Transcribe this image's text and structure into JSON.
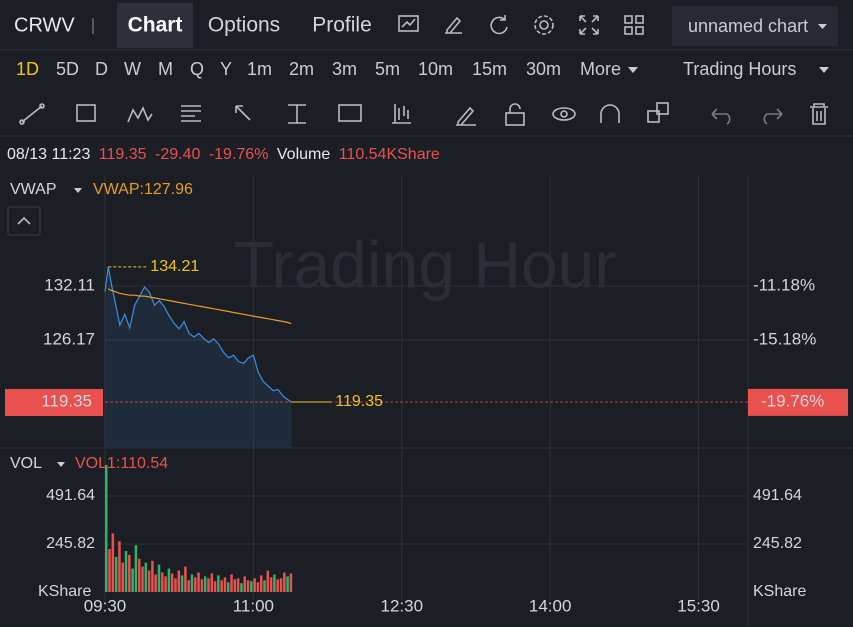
{
  "header": {
    "symbol": "CRWV",
    "tabs": [
      "Chart",
      "Options",
      "Profile"
    ],
    "chart_name": "unnamed chart"
  },
  "periods": [
    "1D",
    "5D",
    "D",
    "W",
    "M",
    "Q",
    "Y",
    "1m",
    "2m",
    "3m",
    "5m",
    "10m",
    "15m",
    "30m",
    "More"
  ],
  "session": "Trading Hours",
  "info": {
    "datetime": "08/13 11:23",
    "price": "119.35",
    "change": "-29.40",
    "change_pct": "-19.76%",
    "volume_label": "Volume",
    "volume": "110.54KShare"
  },
  "chart_data": [
    {
      "type": "line",
      "indicator": "VWAP",
      "indicator_label": "VWAP:127.96",
      "watermark": "Trading Hour",
      "x": [
        "09:30",
        "09:32",
        "09:34",
        "09:36",
        "09:39",
        "09:42",
        "09:45",
        "09:48",
        "09:51",
        "09:54",
        "09:57",
        "10:00",
        "10:03",
        "10:06",
        "10:09",
        "10:12",
        "10:15",
        "10:18",
        "10:21",
        "10:24",
        "10:27",
        "10:30",
        "10:33",
        "10:36",
        "10:39",
        "10:42",
        "10:45",
        "10:48",
        "10:51",
        "10:54",
        "10:57",
        "11:00",
        "11:03",
        "11:06",
        "11:09",
        "11:12",
        "11:15",
        "11:18",
        "11:21",
        "11:23"
      ],
      "series": [
        {
          "color": "#3d8fe0",
          "values": [
            131.5,
            134.21,
            132.2,
            130.5,
            127.8,
            129,
            127.5,
            130,
            131,
            132,
            131.4,
            130,
            130.5,
            129.8,
            128.8,
            128,
            127.4,
            128.2,
            126.9,
            126.5,
            126.9,
            126.3,
            125.9,
            126.3,
            125.7,
            124.8,
            124.2,
            124.5,
            123.8,
            123.6,
            124.2,
            124.5,
            122.6,
            121.6,
            121.1,
            120.6,
            120.7,
            120.0,
            119.6,
            119.35
          ]
        },
        {
          "name": "VWAP",
          "color": "#e69b2a",
          "values": [
            null,
            131.8,
            131.6,
            131.5,
            131.3,
            131.2,
            131.1,
            131.1,
            131.0,
            131.0,
            130.9,
            130.8,
            130.7,
            130.6,
            130.5,
            130.4,
            130.3,
            130.2,
            130.1,
            130.0,
            129.9,
            129.8,
            129.7,
            129.6,
            129.5,
            129.4,
            129.3,
            129.2,
            129.1,
            129.0,
            128.9,
            128.8,
            128.7,
            128.6,
            128.5,
            128.4,
            128.3,
            128.2,
            128.1,
            127.96
          ]
        }
      ],
      "high": 134.21,
      "last": 119.35,
      "last_pct": {
        "value": -19.76,
        "label": "-19.76%"
      },
      "ylim": [
        114.29,
        144.32
      ],
      "yticks": [
        132.11,
        126.17
      ],
      "y2lim": [
        -23.17,
        -2.98
      ],
      "y2ticks": [
        {
          "value": -11.18,
          "label": "-11.18%"
        },
        {
          "value": -15.18,
          "label": "-15.18%"
        }
      ],
      "xlim": [
        "09:30",
        "16:00"
      ],
      "xticks": [
        "09:30",
        "11:00",
        "12:30",
        "14:00",
        "15:30"
      ],
      "grid": true
    },
    {
      "type": "bar",
      "indicator": "VOL",
      "indicator_label": "VOL1:110.54",
      "unit": "KShare",
      "x": [
        "09:30",
        "09:32",
        "09:34",
        "09:36",
        "09:38",
        "09:40",
        "09:42",
        "09:44",
        "09:46",
        "09:48",
        "09:50",
        "09:52",
        "09:54",
        "09:56",
        "09:58",
        "10:00",
        "10:02",
        "10:04",
        "10:06",
        "10:08",
        "10:10",
        "10:12",
        "10:14",
        "10:16",
        "10:18",
        "10:20",
        "10:22",
        "10:24",
        "10:26",
        "10:28",
        "10:30",
        "10:32",
        "10:34",
        "10:36",
        "10:38",
        "10:40",
        "10:42",
        "10:44",
        "10:46",
        "10:48",
        "10:50",
        "10:52",
        "10:54",
        "10:56",
        "10:58",
        "11:00",
        "11:02",
        "11:04",
        "11:06",
        "11:08",
        "11:10",
        "11:12",
        "11:14",
        "11:16",
        "11:18",
        "11:20",
        "11:22"
      ],
      "values": [
        650,
        220,
        300,
        180,
        260,
        150,
        210,
        190,
        120,
        240,
        170,
        130,
        150,
        110,
        160,
        90,
        140,
        100,
        80,
        120,
        95,
        70,
        110,
        85,
        130,
        60,
        90,
        75,
        100,
        65,
        80,
        70,
        95,
        55,
        85,
        60,
        75,
        50,
        90,
        65,
        70,
        45,
        80,
        60,
        55,
        70,
        50,
        85,
        60,
        110,
        75,
        90,
        65,
        70,
        100,
        80,
        95
      ],
      "colors": [
        "#2fb36a",
        "#e9514f",
        "#e9514f",
        "#2fb36a",
        "#e9514f",
        "#e9514f",
        "#2fb36a",
        "#e9514f",
        "#2fb36a",
        "#2fb36a",
        "#e9514f",
        "#e9514f",
        "#2fb36a",
        "#e9514f",
        "#e9514f",
        "#e9514f",
        "#2fb36a",
        "#e9514f",
        "#e9514f",
        "#2fb36a",
        "#e9514f",
        "#e9514f",
        "#e9514f",
        "#2fb36a",
        "#e9514f",
        "#e9514f",
        "#2fb36a",
        "#e9514f",
        "#e9514f",
        "#e9514f",
        "#2fb36a",
        "#e9514f",
        "#e9514f",
        "#e9514f",
        "#2fb36a",
        "#e9514f",
        "#e9514f",
        "#2fb36a",
        "#e9514f",
        "#e9514f",
        "#e9514f",
        "#2fb36a",
        "#e9514f",
        "#e9514f",
        "#2fb36a",
        "#e9514f",
        "#e9514f",
        "#e9514f",
        "#2fb36a",
        "#e9514f",
        "#e9514f",
        "#2fb36a",
        "#e9514f",
        "#e9514f",
        "#e9514f",
        "#2fb36a",
        "#e9514f"
      ],
      "ylim": [
        0,
        727
      ],
      "yticks": [
        245.82,
        491.64
      ],
      "xlim": [
        "09:30",
        "16:00"
      ],
      "xticks": [
        "09:30",
        "11:00",
        "12:30",
        "14:00",
        "15:30"
      ],
      "grid": true
    }
  ]
}
